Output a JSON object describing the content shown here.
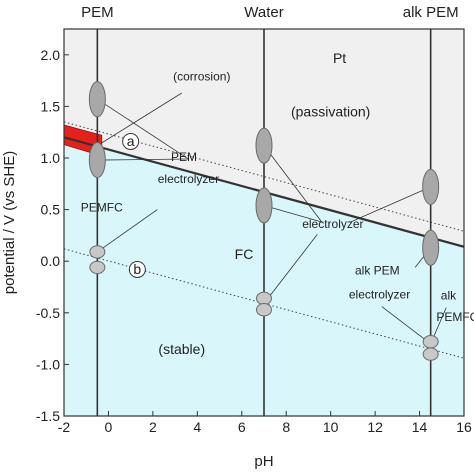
{
  "chart_data": {
    "type": "area",
    "xlabel": "pH",
    "ylabel": "potential / V (vs SHE)",
    "xlim": [
      -2,
      16
    ],
    "ylim": [
      -1.5,
      2.25
    ],
    "x_ticks": [
      -2,
      0,
      2,
      4,
      6,
      8,
      10,
      12,
      14,
      16
    ],
    "y_ticks": [
      -1.5,
      -1.0,
      -0.5,
      0.0,
      0.5,
      1.0,
      1.5,
      2.0
    ],
    "x_tick_labels": [
      "-2",
      "0",
      "2",
      "4",
      "6",
      "8",
      "10",
      "12",
      "14",
      "16"
    ],
    "y_tick_labels": [
      "-1.5",
      "-1.0",
      "-0.5",
      "0.0",
      "0.5",
      "1.0",
      "1.5",
      "2.0"
    ],
    "grid": false,
    "regions": [
      {
        "label": "Pt",
        "color": "#f0f0f0"
      },
      {
        "label": "(passivation)",
        "color": "#f0f0f0"
      },
      {
        "label": "(stable)",
        "color": "#d9f6fb"
      },
      {
        "label": "(corrosion)",
        "color": "#e8201a"
      }
    ],
    "boundary_line": {
      "x": [
        -2,
        16
      ],
      "y": [
        1.2,
        0.14
      ],
      "color": "#333333"
    },
    "reference_lines": [
      {
        "marker": "a",
        "x": [
          -2,
          16
        ],
        "y": [
          1.35,
          0.29
        ],
        "style": "dotted"
      },
      {
        "marker": "b",
        "x": [
          -2,
          16
        ],
        "y": [
          0.12,
          -0.94
        ],
        "style": "dotted"
      }
    ],
    "corrosion_region": {
      "x": [
        -2,
        -0.3
      ],
      "y_top": [
        1.32,
        1.22
      ],
      "y_bottom": [
        1.13,
        1.02
      ]
    },
    "columns": [
      {
        "label": "PEM",
        "x": -0.5
      },
      {
        "label": "Water",
        "x": 7
      },
      {
        "label": "alk PEM",
        "x": 14.5
      }
    ],
    "ellipses": [
      {
        "x": -0.5,
        "y": 1.57,
        "ry": 0.17,
        "color": "#a8a8a8"
      },
      {
        "x": -0.5,
        "y": 0.98,
        "ry": 0.17,
        "color": "#a8a8a8"
      },
      {
        "x": -0.5,
        "y": 0.09,
        "ry": 0.06,
        "color": "#c8c8c8"
      },
      {
        "x": -0.5,
        "y": -0.06,
        "ry": 0.06,
        "color": "#c8c8c8"
      },
      {
        "x": 7,
        "y": 1.12,
        "ry": 0.17,
        "color": "#a8a8a8"
      },
      {
        "x": 7,
        "y": 0.54,
        "ry": 0.17,
        "color": "#a8a8a8"
      },
      {
        "x": 7,
        "y": -0.36,
        "ry": 0.06,
        "color": "#c8c8c8"
      },
      {
        "x": 7,
        "y": -0.47,
        "ry": 0.06,
        "color": "#c8c8c8"
      },
      {
        "x": 14.5,
        "y": 0.72,
        "ry": 0.17,
        "color": "#a8a8a8"
      },
      {
        "x": 14.5,
        "y": 0.13,
        "ry": 0.17,
        "color": "#a8a8a8"
      },
      {
        "x": 14.5,
        "y": -0.78,
        "ry": 0.06,
        "color": "#c8c8c8"
      },
      {
        "x": 14.5,
        "y": -0.9,
        "ry": 0.06,
        "color": "#c8c8c8"
      }
    ],
    "annotations": [
      {
        "text": "Pt",
        "x": 10.4,
        "y": 1.92,
        "size": "big"
      },
      {
        "text": "(passivation)",
        "x": 10.0,
        "y": 1.4,
        "size": "big"
      },
      {
        "text": "(corrosion)",
        "x": 4.2,
        "y": 1.75,
        "size": "small"
      },
      {
        "text": "PEM",
        "x": 3.4,
        "y": 0.97,
        "size": "small"
      },
      {
        "text": "electrolyzer",
        "x": 3.6,
        "y": 0.76,
        "size": "small"
      },
      {
        "text": "PEMFC",
        "x": -0.3,
        "y": 0.48,
        "size": "small"
      },
      {
        "text": "electrolyzer",
        "x": 10.1,
        "y": 0.32,
        "size": "small"
      },
      {
        "text": "FC",
        "x": 6.1,
        "y": 0.02,
        "size": "big"
      },
      {
        "text": "alk PEM",
        "x": 12.1,
        "y": -0.13,
        "size": "small"
      },
      {
        "text": "electrolyzer",
        "x": 12.2,
        "y": -0.36,
        "size": "small"
      },
      {
        "text": "alk",
        "x": 15.3,
        "y": -0.37,
        "size": "small"
      },
      {
        "text": "PEMFC",
        "x": 15.7,
        "y": -0.58,
        "size": "small"
      },
      {
        "text": "(stable)",
        "x": 3.3,
        "y": -0.9,
        "size": "big"
      }
    ],
    "markers": [
      {
        "text": "a",
        "x": 1.0,
        "y": 1.16
      },
      {
        "text": "b",
        "x": 1.3,
        "y": -0.08
      }
    ],
    "leaders": [
      {
        "from": [
          -0.5,
          1.57
        ],
        "to": [
          3.6,
          0.99
        ]
      },
      {
        "from": [
          -0.5,
          0.98
        ],
        "to": [
          3.6,
          0.99
        ]
      },
      {
        "from": [
          -0.5,
          1.12
        ],
        "to": [
          3.3,
          1.63
        ]
      },
      {
        "from": [
          -0.5,
          0.98
        ],
        "to": [
          -0.5,
          0.56
        ]
      },
      {
        "from": [
          -0.5,
          0.09
        ],
        "to": [
          2.2,
          0.5
        ]
      },
      {
        "from": [
          7,
          1.12
        ],
        "to": [
          9.6,
          0.38
        ]
      },
      {
        "from": [
          7,
          0.54
        ],
        "to": [
          9.6,
          0.38
        ]
      },
      {
        "from": [
          7,
          -0.41
        ],
        "to": [
          9.4,
          0.26
        ]
      },
      {
        "from": [
          14.5,
          0.72
        ],
        "to": [
          10.9,
          0.38
        ]
      },
      {
        "from": [
          14.5,
          0.13
        ],
        "to": [
          13.8,
          -0.06
        ]
      },
      {
        "from": [
          14.5,
          -0.8
        ],
        "to": [
          12.3,
          -0.44
        ]
      },
      {
        "from": [
          14.5,
          -0.8
        ],
        "to": [
          15.2,
          -0.45
        ]
      }
    ]
  }
}
